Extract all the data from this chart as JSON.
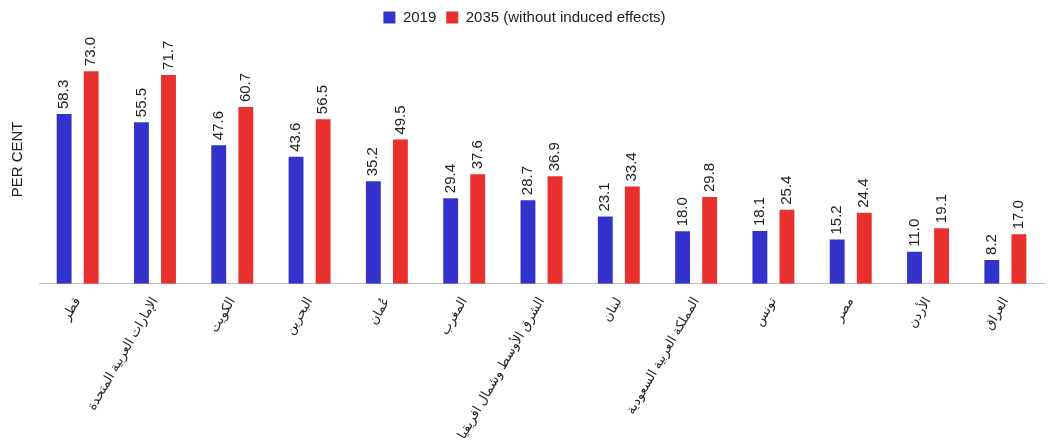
{
  "chart_data": {
    "type": "bar",
    "ylabel": "PER CENT",
    "categories": [
      "قطر",
      "الإمارات العربية المتحدة",
      "الكويت",
      "البحرين",
      "عُمان",
      "المغرب",
      "الشرق الأوسط وشمال افريقيا",
      "لبنان",
      "المملكة العربية السعودية",
      "تونس",
      "مصر",
      "الأردن",
      "العراق"
    ],
    "series": [
      {
        "name": "2019",
        "color": "#3333cc",
        "values": [
          58.3,
          55.5,
          47.6,
          43.6,
          35.2,
          29.4,
          28.7,
          23.1,
          18.0,
          18.1,
          15.2,
          11.0,
          8.2
        ],
        "value_labels": [
          "58.3",
          "55.5",
          "47.6",
          "43.6",
          "35.2",
          "29.4",
          "28.7",
          "23.1",
          "18.0",
          "18.1",
          "15.2",
          "11.0",
          "8.2"
        ]
      },
      {
        "name": "2035 (without induced effects)",
        "color": "#e8312f",
        "values": [
          73.0,
          71.7,
          60.7,
          56.5,
          49.5,
          37.6,
          36.9,
          33.4,
          29.8,
          25.4,
          24.4,
          19.1,
          17.0
        ],
        "value_labels": [
          "73.0",
          "71.7",
          "60.7",
          "56.5",
          "49.5",
          "37.6",
          "36.9",
          "33.4",
          "29.8",
          "25.4",
          "24.4",
          "19.1",
          "17.0"
        ]
      }
    ],
    "legend": "top",
    "grid": false,
    "tick_labels": "x"
  }
}
